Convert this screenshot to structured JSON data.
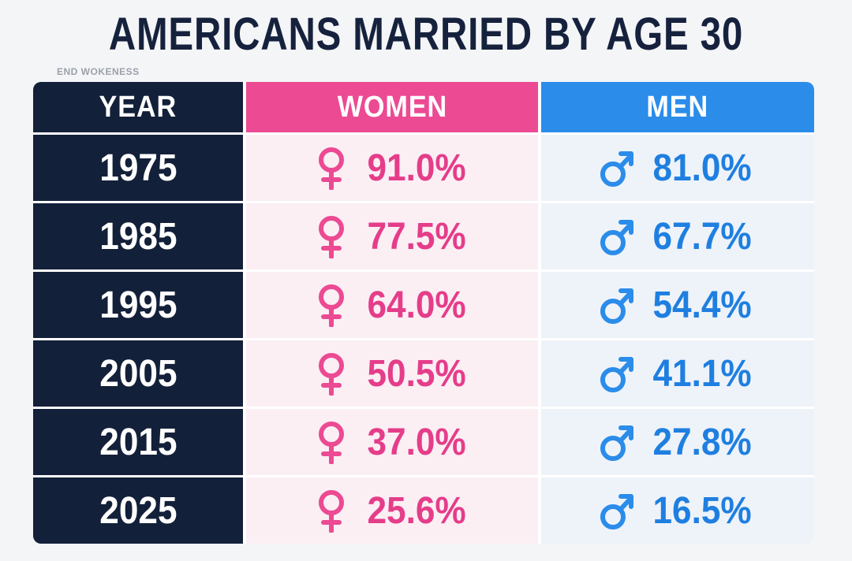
{
  "title": "AMERICANS MARRIED BY AGE 30",
  "watermark": "END WOKENESS",
  "colors": {
    "navy": "#132039",
    "women": "#ec4a93",
    "men": "#2b8cea"
  },
  "icons": {
    "women": "female-symbol-icon",
    "men": "male-symbol-icon"
  },
  "chart_data": {
    "type": "table",
    "title": "AMERICANS MARRIED BY AGE 30",
    "columns": [
      "YEAR",
      "WOMEN",
      "MEN"
    ],
    "rows": [
      {
        "year": "1975",
        "women": "91.0%",
        "men": "81.0%"
      },
      {
        "year": "1985",
        "women": "77.5%",
        "men": "67.7%"
      },
      {
        "year": "1995",
        "women": "64.0%",
        "men": "54.4%"
      },
      {
        "year": "2005",
        "women": "50.5%",
        "men": "41.1%"
      },
      {
        "year": "2015",
        "women": "37.0%",
        "men": "27.8%"
      },
      {
        "year": "2025",
        "women": "25.6%",
        "men": "16.5%"
      }
    ]
  }
}
